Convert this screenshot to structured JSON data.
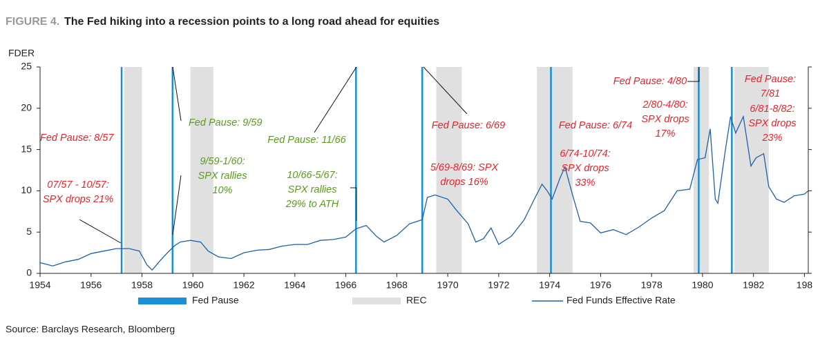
{
  "chart_data": {
    "type": "line",
    "title_prefix": "FIGURE 4.",
    "title": "The Fed hiking into a recession points to a long road ahead for equities",
    "y_label": "FDER",
    "xlim": [
      1954,
      1984.15
    ],
    "xticks": [
      1954,
      1956,
      1958,
      1960,
      1962,
      1964,
      1966,
      1968,
      1970,
      1972,
      1974,
      1976,
      1978,
      1980,
      1982,
      {
        "value": 1984,
        "label": "198"
      }
    ],
    "ylim": [
      0,
      25
    ],
    "yticks": [
      0,
      5,
      10,
      15,
      20,
      25
    ],
    "series": [
      {
        "name": "Fed Funds Effective Rate",
        "color": "#1f5fa8",
        "x": [
          1954.0,
          1954.5,
          1955.0,
          1955.5,
          1956.0,
          1956.5,
          1957.0,
          1957.5,
          1957.9,
          1958.2,
          1958.4,
          1958.7,
          1959.0,
          1959.3,
          1959.5,
          1959.9,
          1960.3,
          1960.6,
          1961.0,
          1961.5,
          1962.0,
          1962.5,
          1963.0,
          1963.5,
          1964.0,
          1964.5,
          1965.0,
          1965.5,
          1966.0,
          1966.4,
          1966.8,
          1967.2,
          1967.5,
          1968.0,
          1968.5,
          1969.0,
          1969.2,
          1969.5,
          1970.0,
          1970.3,
          1970.8,
          1971.1,
          1971.4,
          1971.7,
          1972.0,
          1972.5,
          1973.0,
          1973.4,
          1973.7,
          1973.9,
          1974.1,
          1974.4,
          1974.6,
          1974.9,
          1975.2,
          1975.6,
          1976.0,
          1976.5,
          1977.0,
          1977.5,
          1978.0,
          1978.5,
          1979.0,
          1979.5,
          1979.8,
          1980.1,
          1980.3,
          1980.5,
          1980.6,
          1980.9,
          1981.1,
          1981.3,
          1981.6,
          1981.9,
          1982.1,
          1982.4,
          1982.6,
          1982.9,
          1983.2,
          1983.6,
          1984.0,
          1984.15
        ],
        "values": [
          1.3,
          0.9,
          1.4,
          1.7,
          2.4,
          2.7,
          3.0,
          3.0,
          2.7,
          1.0,
          0.4,
          1.5,
          2.5,
          3.4,
          3.8,
          4.0,
          3.8,
          2.7,
          2.0,
          1.8,
          2.5,
          2.8,
          2.9,
          3.3,
          3.5,
          3.5,
          4.0,
          4.1,
          4.4,
          5.4,
          5.8,
          4.5,
          3.8,
          4.6,
          6.0,
          6.5,
          9.2,
          9.5,
          9.0,
          7.8,
          6.0,
          3.8,
          4.2,
          5.5,
          3.5,
          4.5,
          6.5,
          9.0,
          10.8,
          10.0,
          9.0,
          11.5,
          12.9,
          9.5,
          6.3,
          6.1,
          4.9,
          5.3,
          4.7,
          5.6,
          6.7,
          7.6,
          10.0,
          10.2,
          13.8,
          14.0,
          17.5,
          9.0,
          8.5,
          15.0,
          19.0,
          17.0,
          19.0,
          13.0,
          14.0,
          14.5,
          10.5,
          9.0,
          8.6,
          9.4,
          9.6,
          10.0
        ]
      }
    ],
    "fed_pause": {
      "name": "Fed Pause",
      "color": "#1a8fd6",
      "x": [
        1957.2,
        1959.2,
        1966.4,
        1969.0,
        1974.05,
        1979.85,
        1981.15
      ]
    },
    "recessions": {
      "name": "REC",
      "color": "#e0e0e0",
      "start": [
        1957.3,
        1959.9,
        1969.55,
        1973.5,
        1979.65,
        1981.25
      ],
      "end": [
        1958.0,
        1960.8,
        1970.55,
        1974.9,
        1980.25,
        1982.6
      ]
    },
    "annotations": [
      {
        "lines": [
          "Fed Pause: 8/57"
        ],
        "color": "#e4252b"
      },
      {
        "lines": [
          "07/57 - 10/57:",
          "SPX drops 21%"
        ],
        "color": "#e4252b"
      },
      {
        "lines": [
          "Fed Pause: 9/59"
        ],
        "color": "#5b9a1e"
      },
      {
        "lines": [
          "9/59-1/60:",
          "SPX rallies",
          "10%"
        ],
        "color": "#5b9a1e"
      },
      {
        "lines": [
          "Fed Pause: 11/66"
        ],
        "color": "#5b9a1e"
      },
      {
        "lines": [
          "10/66-5/67:",
          "SPX rallies",
          "29% to ATH"
        ],
        "color": "#5b9a1e"
      },
      {
        "lines": [
          "Fed Pause: 6/69"
        ],
        "color": "#e4252b"
      },
      {
        "lines": [
          "5/69-8/69: SPX",
          "drops 16%"
        ],
        "color": "#e4252b"
      },
      {
        "lines": [
          "Fed Pause: 6/74"
        ],
        "color": "#e4252b"
      },
      {
        "lines": [
          "6/74-10/74:",
          "SPX drops",
          "33%"
        ],
        "color": "#e4252b"
      },
      {
        "lines": [
          "Fed Pause: 4/80"
        ],
        "color": "#e4252b"
      },
      {
        "lines": [
          "2/80-4/80:",
          "SPX drops",
          "17%"
        ],
        "color": "#e4252b"
      },
      {
        "lines": [
          "Fed Pause:",
          "7/81"
        ],
        "color": "#e4252b"
      },
      {
        "lines": [
          "6/81-8/82:",
          "SPX drops",
          "23%"
        ],
        "color": "#e4252b"
      }
    ],
    "source": "Source: Barclays Research, Bloomberg"
  }
}
